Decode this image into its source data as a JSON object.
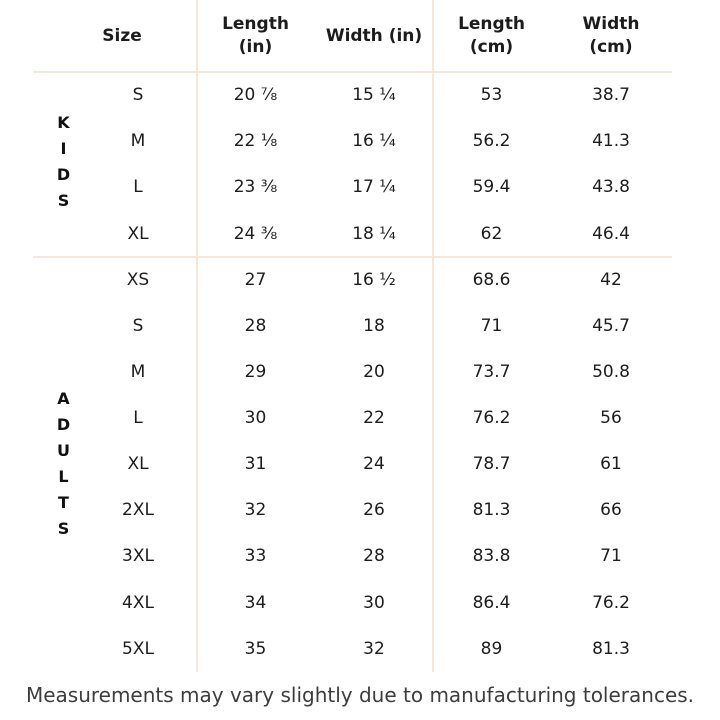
{
  "table": {
    "headers": [
      "Size",
      "Length\n(in)",
      "Width (in)",
      "Length\n(cm)",
      "Width\n(cm)"
    ],
    "groups": [
      {
        "label": "KIDS",
        "rows": [
          [
            "S",
            "20 ⅞",
            "15 ¼",
            "53",
            "38.7"
          ],
          [
            "M",
            "22 ⅛",
            "16 ¼",
            "56.2",
            "41.3"
          ],
          [
            "L",
            "23 ⅜",
            "17 ¼",
            "59.4",
            "43.8"
          ],
          [
            "XL",
            "24 ⅜",
            "18 ¼",
            "62",
            "46.4"
          ]
        ]
      },
      {
        "label": "ADULTS",
        "rows": [
          [
            "XS",
            "27",
            "16 ½",
            "68.6",
            "42"
          ],
          [
            "S",
            "28",
            "18",
            "71",
            "45.7"
          ],
          [
            "M",
            "29",
            "20",
            "73.7",
            "50.8"
          ],
          [
            "L",
            "30",
            "22",
            "76.2",
            "56"
          ],
          [
            "XL",
            "31",
            "24",
            "78.7",
            "61"
          ],
          [
            "2XL",
            "32",
            "26",
            "81.3",
            "66"
          ],
          [
            "3XL",
            "33",
            "28",
            "83.8",
            "71"
          ],
          [
            "4XL",
            "34",
            "30",
            "86.4",
            "76.2"
          ],
          [
            "5XL",
            "35",
            "32",
            "89",
            "81.3"
          ]
        ]
      }
    ]
  },
  "note": "Measurements may vary slightly due to manufacturing tolerances.",
  "colors": {
    "background": "#ffffff",
    "divider": "#fae5d9",
    "text": "#1c1c1c",
    "note_text": "#3d3d3d"
  }
}
